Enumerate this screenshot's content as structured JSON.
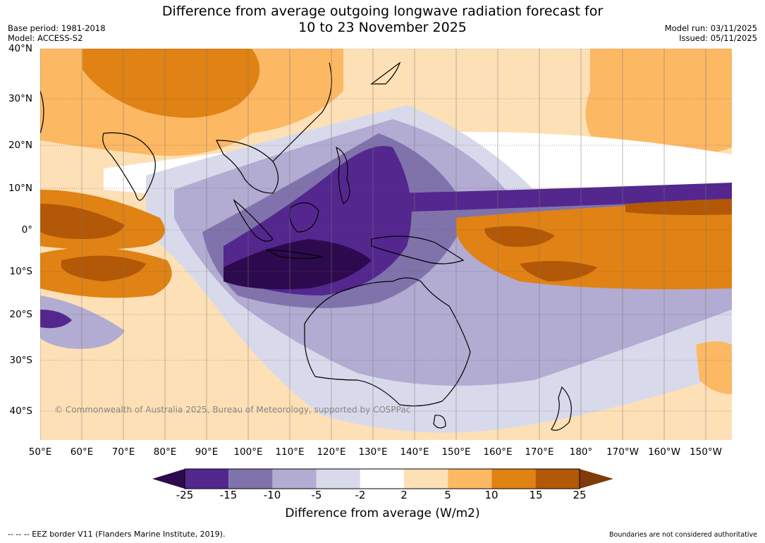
{
  "title": {
    "line1": "Difference from average outgoing longwave radiation forecast for",
    "line2": "10 to 23 November 2025"
  },
  "meta": {
    "base_period": "Base period: 1981-2018",
    "model": "Model: ACCESS-S2",
    "model_run": "Model run: 03/11/2025",
    "issued": "Issued: 05/11/2025"
  },
  "axes": {
    "lat_labels": [
      "40°N",
      "30°N",
      "20°N",
      "10°N",
      "0°",
      "10°S",
      "20°S",
      "30°S",
      "40°S"
    ],
    "lon_labels": [
      "50°E",
      "60°E",
      "70°E",
      "80°E",
      "90°E",
      "100°E",
      "110°E",
      "120°E",
      "130°E",
      "140°E",
      "150°E",
      "160°E",
      "170°E",
      "180°",
      "170°W",
      "160°W",
      "150°W"
    ]
  },
  "colorbar": {
    "ticks": [
      "-25",
      "-15",
      "-10",
      "-5",
      "-2",
      "2",
      "5",
      "10",
      "15",
      "25"
    ],
    "colors": [
      "#2d0a4e",
      "#54278f",
      "#8073ac",
      "#b2abd2",
      "#d8daeb",
      "#ffffff",
      "#fee0b6",
      "#fdb863",
      "#e08214",
      "#b35806",
      "#7f3b08"
    ],
    "label": "Difference from average (W/m2)"
  },
  "copyright": "© Commonwealth of Australia 2025, Bureau of Meteorology, supported by COSPPac",
  "footer": {
    "eez_note": "--  --  -- EEZ border V11 (Flanders Marine Institute, 2019).",
    "boundaries_note": "Boundaries are not considered authoritative"
  }
}
